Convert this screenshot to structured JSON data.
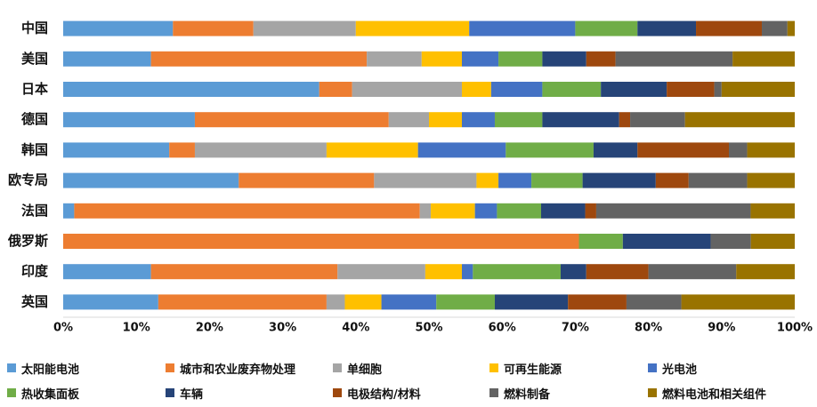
{
  "chart_data": {
    "type": "bar",
    "orientation": "horizontal",
    "stacked": "percent",
    "categories": [
      "中国",
      "美国",
      "日本",
      "德国",
      "韩国",
      "欧专局",
      "法国",
      "俄罗斯",
      "印度",
      "英国"
    ],
    "series": [
      {
        "name": "太阳能电池",
        "color": "#5B9BD5",
        "values": [
          15,
          12,
          35,
          18,
          14.5,
          24,
          1.5,
          0,
          12,
          13
        ]
      },
      {
        "name": "城市和农业废弃物处理",
        "color": "#ED7D31",
        "values": [
          11,
          29.5,
          4.5,
          26.5,
          3.5,
          18.5,
          47,
          70.5,
          25.5,
          23
        ]
      },
      {
        "name": "单细胞",
        "color": "#A5A5A5",
        "values": [
          14,
          7.5,
          15,
          5.5,
          18,
          14,
          1.5,
          0,
          12,
          2.5
        ]
      },
      {
        "name": "可再生能源",
        "color": "#FFC000",
        "values": [
          15.5,
          5.5,
          4,
          4.5,
          12.5,
          3,
          6,
          0,
          5,
          5
        ]
      },
      {
        "name": "光电池",
        "color": "#4472C4",
        "values": [
          14.5,
          5,
          7,
          4.5,
          12,
          4.5,
          3,
          0,
          1.5,
          7.5
        ]
      },
      {
        "name": "热收集面板",
        "color": "#70AD47",
        "values": [
          8.5,
          6,
          8,
          6.5,
          12,
          7,
          6,
          6,
          12,
          8
        ]
      },
      {
        "name": "车辆",
        "color": "#264478",
        "values": [
          8,
          6,
          9,
          10.5,
          6,
          10,
          6,
          12,
          3.5,
          10
        ]
      },
      {
        "name": "电极结构/材料",
        "color": "#9E480E",
        "values": [
          9,
          4,
          6.5,
          1.5,
          12.5,
          4.5,
          1.5,
          0,
          8.5,
          8
        ]
      },
      {
        "name": "燃料制备",
        "color": "#636363",
        "values": [
          3.5,
          16,
          1,
          7.5,
          2.5,
          8,
          21,
          5.5,
          12,
          7.5
        ]
      },
      {
        "name": "燃料电池和相关组件",
        "color": "#997300",
        "values": [
          1,
          8.5,
          10,
          15,
          6.5,
          6.5,
          6,
          6,
          8,
          15.5
        ]
      }
    ],
    "xlim": [
      0,
      100
    ],
    "x_ticks": [
      "0%",
      "10%",
      "20%",
      "30%",
      "40%",
      "50%",
      "60%",
      "70%",
      "80%",
      "90%",
      "100%"
    ],
    "grid": false,
    "legend_position": "bottom"
  }
}
